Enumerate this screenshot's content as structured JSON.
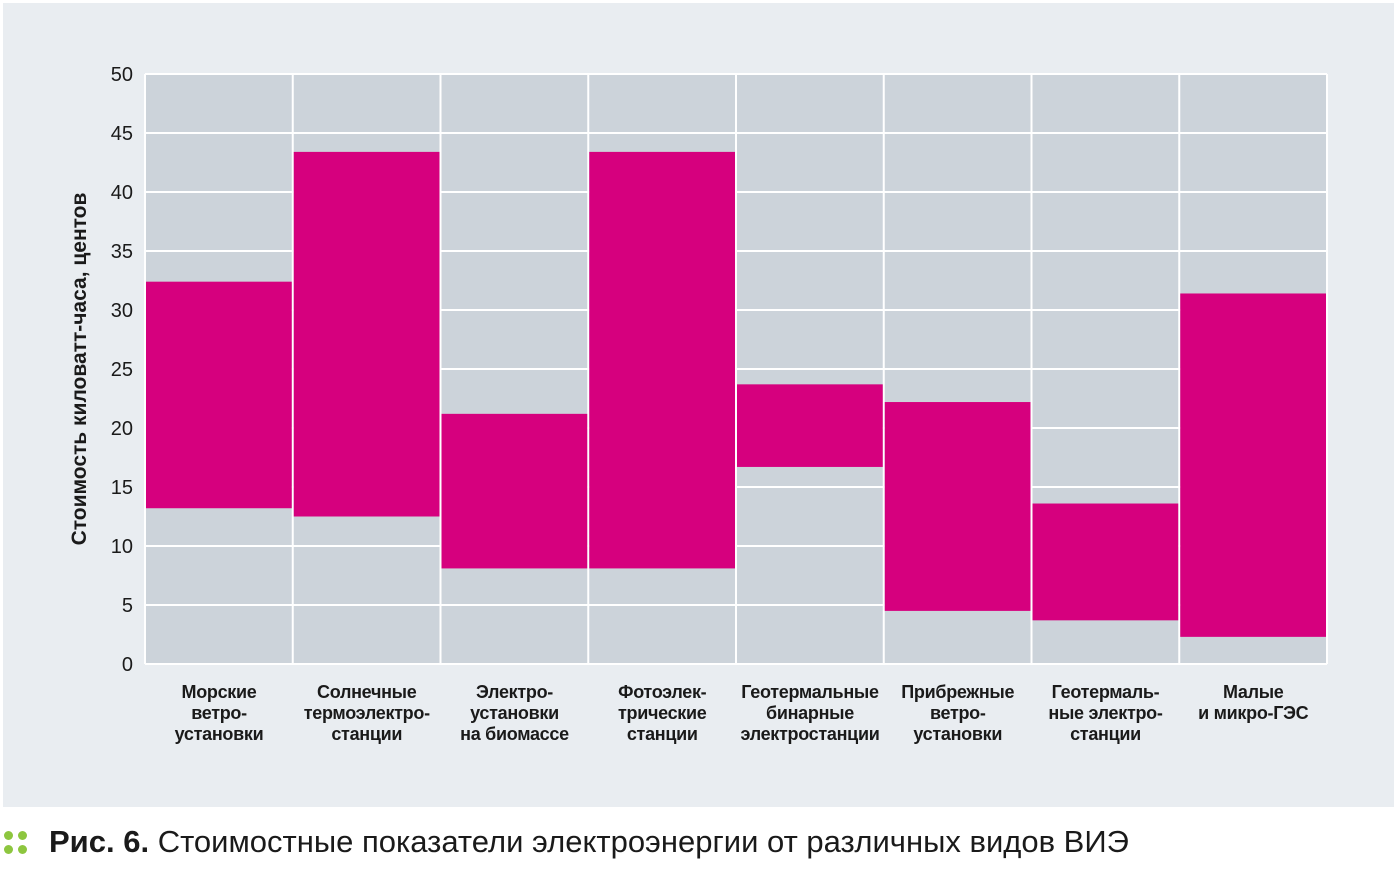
{
  "chart_data": {
    "type": "bar",
    "subtype": "floating-range",
    "ylabel": "Стоимость киловатт-часа, центов",
    "ylim": [
      0,
      50
    ],
    "yticks": [
      0,
      5,
      10,
      15,
      20,
      25,
      30,
      35,
      40,
      45,
      50
    ],
    "grid": true,
    "categories": [
      [
        "Морские",
        "ветро-",
        "установки"
      ],
      [
        "Солнечные",
        "термоэлектро-",
        "станции"
      ],
      [
        "Электро-",
        "установки",
        "на биомассе"
      ],
      [
        "Фотоэлек-",
        "трические",
        "станции"
      ],
      [
        "Геотермальные",
        "бинарные",
        "электростанции"
      ],
      [
        "Прибрежные",
        "ветро-",
        "установки"
      ],
      [
        "Геотермаль-",
        "ные электро-",
        "станции"
      ],
      [
        "Малые",
        "и микро-ГЭС"
      ]
    ],
    "ranges": [
      [
        13.2,
        32.4
      ],
      [
        12.5,
        43.4
      ],
      [
        8.1,
        21.2
      ],
      [
        8.1,
        43.4
      ],
      [
        16.7,
        23.7
      ],
      [
        4.5,
        22.2
      ],
      [
        3.7,
        13.6
      ],
      [
        2.3,
        31.4
      ]
    ],
    "colors": {
      "bar": "#d6007e",
      "plot_bg": "#ccd3da",
      "grid": "#ffffff",
      "panel_bg": "#e9edf1"
    }
  },
  "caption": {
    "number": "Рис. 6.",
    "text": "Стоимостные показатели электроэнергии от различных видов ВИЭ",
    "bullet_color": "#8dc63f"
  }
}
